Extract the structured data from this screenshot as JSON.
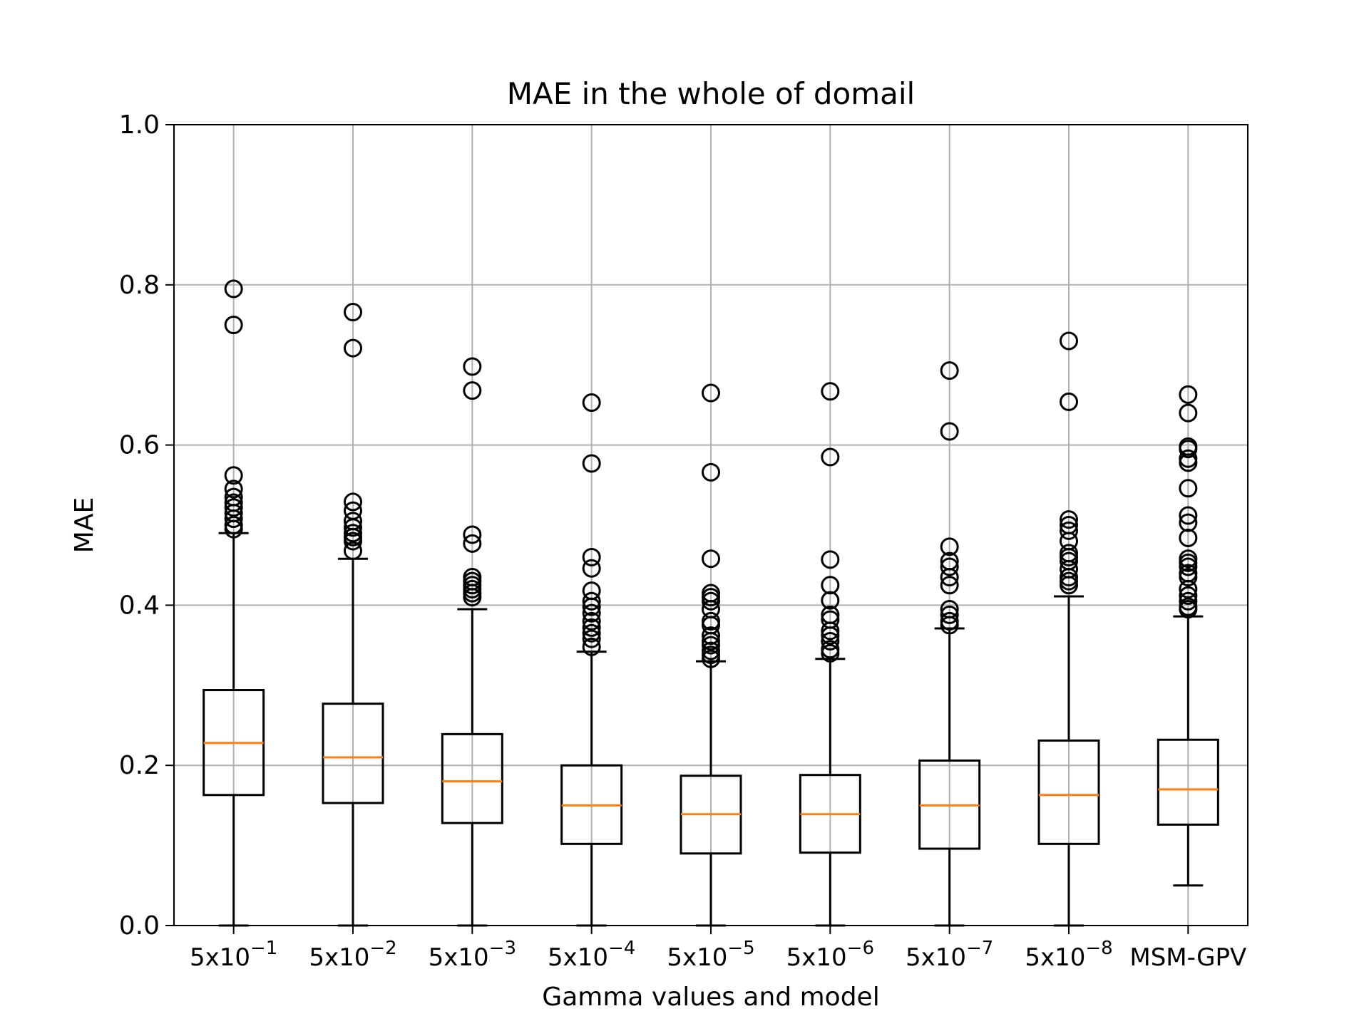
{
  "chart_data": {
    "type": "box",
    "title": "MAE in the whole of domail",
    "xlabel": "Gamma values and model",
    "ylabel": "MAE",
    "ylim": [
      0,
      1.0
    ],
    "yticks": [
      "0.0",
      "0.2",
      "0.4",
      "0.6",
      "0.8",
      "1.0"
    ],
    "grid": true,
    "categories": [
      {
        "base": "5x10",
        "exp": "−1"
      },
      {
        "base": "5x10",
        "exp": "−2"
      },
      {
        "base": "5x10",
        "exp": "−3"
      },
      {
        "base": "5x10",
        "exp": "−4"
      },
      {
        "base": "5x10",
        "exp": "−5"
      },
      {
        "base": "5x10",
        "exp": "−6"
      },
      {
        "base": "5x10",
        "exp": "−7"
      },
      {
        "base": "5x10",
        "exp": "−8"
      },
      {
        "base": "MSM-GPV",
        "exp": ""
      }
    ],
    "boxes": [
      {
        "whisker_low": 0.0,
        "q1": 0.163,
        "median": 0.228,
        "q3": 0.294,
        "whisker_high": 0.49,
        "outliers": [
          0.795,
          0.75,
          0.562,
          0.545,
          0.535,
          0.528,
          0.522,
          0.515,
          0.508,
          0.5,
          0.495
        ]
      },
      {
        "whisker_low": 0.0,
        "q1": 0.153,
        "median": 0.21,
        "q3": 0.277,
        "whisker_high": 0.458,
        "outliers": [
          0.766,
          0.721,
          0.529,
          0.518,
          0.505,
          0.497,
          0.49,
          0.485,
          0.48,
          0.468
        ]
      },
      {
        "whisker_low": 0.0,
        "q1": 0.128,
        "median": 0.18,
        "q3": 0.239,
        "whisker_high": 0.395,
        "outliers": [
          0.698,
          0.668,
          0.488,
          0.477,
          0.435,
          0.43,
          0.425,
          0.42,
          0.415,
          0.41
        ]
      },
      {
        "whisker_low": 0.0,
        "q1": 0.102,
        "median": 0.15,
        "q3": 0.2,
        "whisker_high": 0.342,
        "outliers": [
          0.653,
          0.577,
          0.46,
          0.446,
          0.418,
          0.405,
          0.398,
          0.39,
          0.38,
          0.372,
          0.365,
          0.358,
          0.348
        ]
      },
      {
        "whisker_low": 0.0,
        "q1": 0.09,
        "median": 0.139,
        "q3": 0.187,
        "whisker_high": 0.33,
        "outliers": [
          0.665,
          0.566,
          0.458,
          0.415,
          0.41,
          0.405,
          0.395,
          0.38,
          0.375,
          0.362,
          0.355,
          0.35,
          0.343,
          0.338,
          0.333
        ]
      },
      {
        "whisker_low": 0.0,
        "q1": 0.091,
        "median": 0.139,
        "q3": 0.188,
        "whisker_high": 0.333,
        "outliers": [
          0.667,
          0.585,
          0.457,
          0.425,
          0.406,
          0.388,
          0.382,
          0.368,
          0.362,
          0.355,
          0.345,
          0.34
        ]
      },
      {
        "whisker_low": 0.0,
        "q1": 0.096,
        "median": 0.15,
        "q3": 0.206,
        "whisker_high": 0.371,
        "outliers": [
          0.693,
          0.617,
          0.473,
          0.455,
          0.448,
          0.435,
          0.425,
          0.395,
          0.388,
          0.38,
          0.375
        ]
      },
      {
        "whisker_low": 0.0,
        "q1": 0.102,
        "median": 0.163,
        "q3": 0.231,
        "whisker_high": 0.411,
        "outliers": [
          0.73,
          0.654,
          0.507,
          0.5,
          0.493,
          0.48,
          0.465,
          0.46,
          0.455,
          0.445,
          0.435,
          0.43,
          0.425
        ]
      },
      {
        "whisker_low": 0.05,
        "q1": 0.126,
        "median": 0.17,
        "q3": 0.232,
        "whisker_high": 0.386,
        "outliers": [
          0.663,
          0.64,
          0.598,
          0.595,
          0.583,
          0.578,
          0.546,
          0.512,
          0.503,
          0.484,
          0.458,
          0.453,
          0.448,
          0.44,
          0.435,
          0.42,
          0.412,
          0.405,
          0.398,
          0.395
        ]
      }
    ],
    "colors": {
      "box": "#000000",
      "median": "#ff7f0e",
      "grid": "#b0b0b0",
      "outlier": "#000000"
    }
  }
}
